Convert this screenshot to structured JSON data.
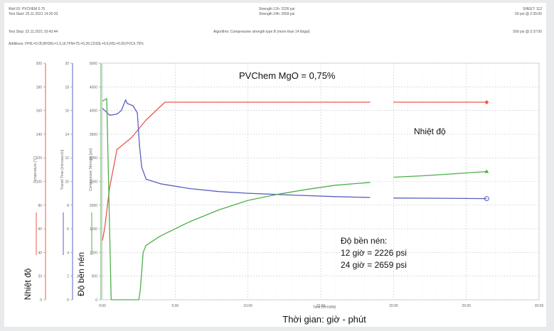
{
  "header": {
    "well_id": "Well ID: PVCHEM 0.75",
    "test_start": "Test Start: 25.11.2021 14:20:33",
    "test_stop": "Test Stop: 22.11.2021 10:43:44",
    "strength_12h": "Strength 12h: 2226 psi",
    "strength_24h": "Strength 24h: 2659 psi",
    "sheet": "SHEET: 112",
    "psi_50": "50 psi @ 2:35:00",
    "psi_500": "500 psi @ 2:37:00",
    "algorithm": "Algorithm: Compressive strength type B (more than 14 lb/gal)",
    "additives": "Additives: FP6L=0.05,BH30L=1.0,ULTFN=75,=0.26,CD33L=0.6,R5L=0.00,PVCh.75%"
  },
  "annotations": {
    "top": "PVChem MgO = 0,75%",
    "temp_series_label": "Nhiệt độ",
    "strength_title": "Độ bền nén:",
    "strength_12": "12 giờ = 2226 psi",
    "strength_24": "24 giờ = 2659 psi",
    "y_left_temp": "Nhiệt độ",
    "y_left_strength": "Độ bền nén",
    "x_title": "Thời gian: giờ - phút"
  },
  "chart_data": {
    "type": "line",
    "title": "PVChem MgO = 0,75%",
    "xlabel": "Time (HH:MM)",
    "xlim": [
      0,
      30
    ],
    "x_ticks": [
      "0:00",
      "5:00",
      "10:00",
      "15:00",
      "20:00",
      "25:00",
      "30:00"
    ],
    "grid": true,
    "axes": [
      {
        "id": "temp",
        "label": "Temperature [°C]",
        "range": [
          0,
          200
        ],
        "ticks": [
          "0",
          "20",
          "40",
          "60",
          "80",
          "100",
          "120",
          "140",
          "160",
          "180",
          "200"
        ],
        "color": "#e8584b"
      },
      {
        "id": "transit",
        "label": "Transit Time [microsec/in]",
        "range": [
          0,
          20
        ],
        "ticks": [
          "0",
          "2",
          "4",
          "6",
          "8",
          "10",
          "12",
          "14",
          "16",
          "18",
          "20"
        ],
        "color": "#5a5fbf"
      },
      {
        "id": "strength",
        "label": "Compressive Strength [psi]",
        "range": [
          0,
          5000
        ],
        "ticks": [
          "0",
          "500",
          "1000",
          "1500",
          "2000",
          "2500",
          "3000",
          "3500",
          "4000",
          "4500",
          "5000"
        ],
        "color": "#4daf4a"
      }
    ],
    "series": [
      {
        "axis": "temp",
        "color": "#e8584b",
        "end_marker": "diamond",
        "segments": [
          [
            [
              0,
              50
            ],
            [
              0.15,
              60
            ],
            [
              0.5,
              95
            ],
            [
              1.0,
              127
            ],
            [
              2.0,
              137
            ],
            [
              3.0,
              152
            ],
            [
              4.3,
              167
            ],
            [
              10,
              167
            ],
            [
              15,
              167
            ],
            [
              18.4,
              167
            ]
          ],
          [
            [
              20.0,
              167
            ],
            [
              26.4,
              167
            ]
          ]
        ]
      },
      {
        "axis": "transit",
        "color": "#5a5fbf",
        "end_marker": "circle",
        "segments": [
          [
            [
              0,
              16.2
            ],
            [
              0.5,
              15.6
            ],
            [
              1.0,
              15.7
            ],
            [
              1.3,
              16.0
            ],
            [
              1.6,
              16.9
            ],
            [
              1.7,
              16.6
            ],
            [
              2.1,
              16.4
            ],
            [
              2.4,
              15.8
            ],
            [
              2.55,
              13.0
            ],
            [
              2.7,
              11.2
            ],
            [
              3.0,
              10.2
            ],
            [
              4.0,
              9.8
            ],
            [
              6.0,
              9.4
            ],
            [
              8.0,
              9.15
            ],
            [
              10.0,
              9.0
            ],
            [
              13.0,
              8.85
            ],
            [
              16.0,
              8.72
            ],
            [
              18.4,
              8.65
            ]
          ],
          [
            [
              20.0,
              8.6
            ],
            [
              23.0,
              8.58
            ],
            [
              26.4,
              8.55
            ]
          ]
        ]
      },
      {
        "axis": "strength",
        "color": "#4daf4a",
        "end_marker": "triangle",
        "segments": [
          [
            [
              0,
              4200
            ],
            [
              0.3,
              4250
            ],
            [
              0.6,
              0
            ],
            [
              2.5,
              0
            ],
            [
              2.6,
              200
            ],
            [
              2.8,
              1000
            ],
            [
              3.0,
              1150
            ],
            [
              4.0,
              1350
            ],
            [
              6.0,
              1650
            ],
            [
              8.0,
              1900
            ],
            [
              10.0,
              2100
            ],
            [
              12.0,
              2226
            ],
            [
              14.0,
              2330
            ],
            [
              16.0,
              2420
            ],
            [
              18.4,
              2480
            ]
          ],
          [
            [
              20.0,
              2590
            ],
            [
              22.0,
              2620
            ],
            [
              24.0,
              2659
            ],
            [
              26.4,
              2710
            ]
          ]
        ]
      }
    ]
  }
}
